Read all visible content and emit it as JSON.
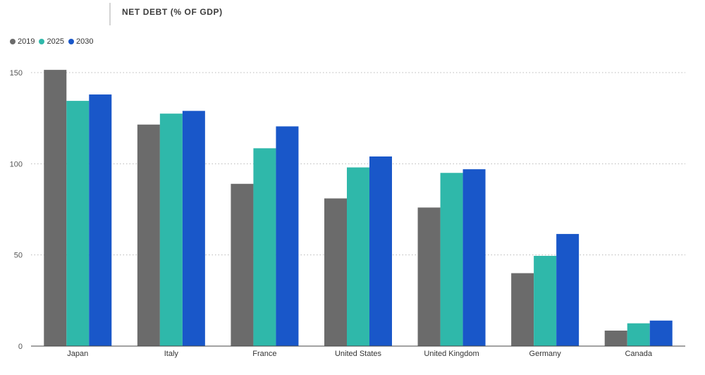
{
  "chart_data": {
    "type": "bar",
    "title": "NET DEBT (% OF GDP)",
    "categories": [
      "Japan",
      "Italy",
      "France",
      "United States",
      "United Kingdom",
      "Germany",
      "Canada"
    ],
    "series": [
      {
        "name": "2019",
        "color": "#6b6b6b",
        "values": [
          151.5,
          121.5,
          89,
          81,
          76,
          40,
          8.5
        ]
      },
      {
        "name": "2025",
        "color": "#2fb8aa",
        "values": [
          134.5,
          127.5,
          108.5,
          98,
          95,
          49.5,
          12.5
        ]
      },
      {
        "name": "2030",
        "color": "#1957c9",
        "values": [
          138,
          129,
          120.5,
          104,
          97,
          61.5,
          14
        ]
      }
    ],
    "y_ticks": [
      0,
      50,
      100,
      150
    ],
    "ylim": [
      0,
      150
    ],
    "grid": true,
    "legend_position": "top-left"
  }
}
